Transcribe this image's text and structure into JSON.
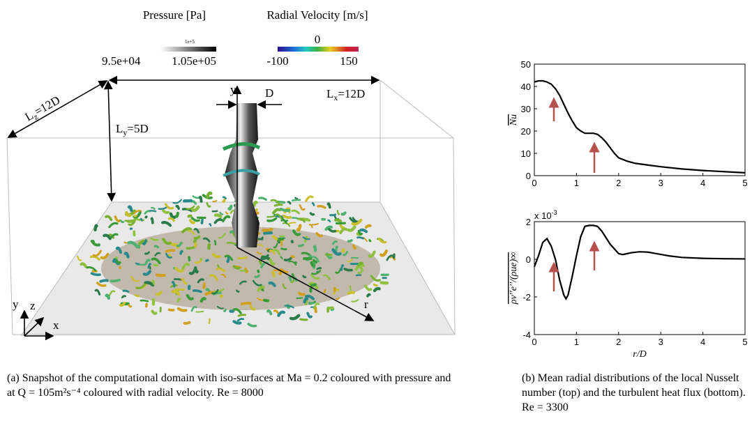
{
  "figure_a": {
    "colorbars": [
      {
        "title": "Pressure [Pa]",
        "multiplier": "1e+5",
        "ticks": [
          "9.5e+04",
          "1.05e+05"
        ]
      },
      {
        "title": "Radial Velocity [m/s]",
        "ticks": [
          "0",
          "-100",
          "150"
        ]
      }
    ],
    "labels": {
      "lz": {
        "text": "L",
        "sub": "z",
        "after": "=12D"
      },
      "lx": {
        "text": "L",
        "sub": "x",
        "after": "=12D"
      },
      "ly": {
        "text": "L",
        "sub": "y",
        "after": "=5D"
      },
      "d": "D",
      "y": "y",
      "r": "r",
      "axis_y": "y",
      "axis_z": "z",
      "axis_x": "x"
    },
    "caption": "(a) Snapshot of the computational domain with iso-surfaces at Ma = 0.2 coloured with pressure and at Q = 105m²s⁻⁴ coloured with radial velocity. Re = 8000"
  },
  "chart_data": [
    {
      "type": "line",
      "ylabel": "Nu",
      "ylabel_overline": true,
      "color": "#000000",
      "x": [
        0,
        0.1,
        0.2,
        0.3,
        0.4,
        0.5,
        0.6,
        0.7,
        0.8,
        0.9,
        1.0,
        1.1,
        1.2,
        1.3,
        1.4,
        1.5,
        1.6,
        1.7,
        1.8,
        1.9,
        2.0,
        2.2,
        2.4,
        2.6,
        2.8,
        3.0,
        3.5,
        4.0,
        4.5,
        5.0
      ],
      "values": [
        42,
        42.5,
        42.5,
        42,
        41,
        39,
        36,
        32,
        28,
        24.5,
        21.5,
        20,
        19,
        19,
        19,
        18.5,
        17,
        15,
        12.5,
        10,
        8,
        6.5,
        5.5,
        5,
        4.5,
        4,
        3,
        2.3,
        1.8,
        1.3
      ],
      "xlim": [
        0,
        5
      ],
      "xticks": [
        0,
        1,
        2,
        3,
        4,
        5
      ],
      "ylim": [
        0,
        50
      ],
      "yticks": [
        0,
        10,
        20,
        30,
        40,
        50
      ]
    },
    {
      "type": "line",
      "ylabel": "ρv′′e′′/(ρue)∞",
      "ylabel_overline": true,
      "xlabel": "r/D",
      "y_multiplier": "x 10",
      "y_multiplier_exp": "-3",
      "color": "#000000",
      "x": [
        0,
        0.1,
        0.2,
        0.3,
        0.4,
        0.5,
        0.6,
        0.7,
        0.75,
        0.8,
        0.9,
        1.0,
        1.1,
        1.2,
        1.3,
        1.4,
        1.5,
        1.6,
        1.8,
        2.0,
        2.1,
        2.3,
        2.5,
        2.7,
        2.9,
        3.2,
        3.5,
        4.0,
        4.5,
        5.0
      ],
      "values": [
        -0.4,
        0.2,
        0.9,
        1.1,
        0.7,
        0,
        -1.1,
        -1.9,
        -2.1,
        -1.9,
        -0.9,
        0.2,
        1.2,
        1.75,
        1.8,
        1.8,
        1.75,
        1.5,
        0.8,
        0.3,
        0.25,
        0.35,
        0.4,
        0.38,
        0.3,
        0.18,
        0.1,
        0.05,
        0.03,
        0.02
      ],
      "xlim": [
        0,
        5
      ],
      "xticks": [
        0,
        1,
        2,
        3,
        4,
        5
      ],
      "ylim": [
        -4,
        2
      ],
      "yticks": [
        -4,
        -2,
        0,
        2
      ]
    }
  ],
  "caption_b": "(b) Mean radial distributions of the local Nusselt number (top) and the turbulent heat flux (bottom). Re = 3300"
}
